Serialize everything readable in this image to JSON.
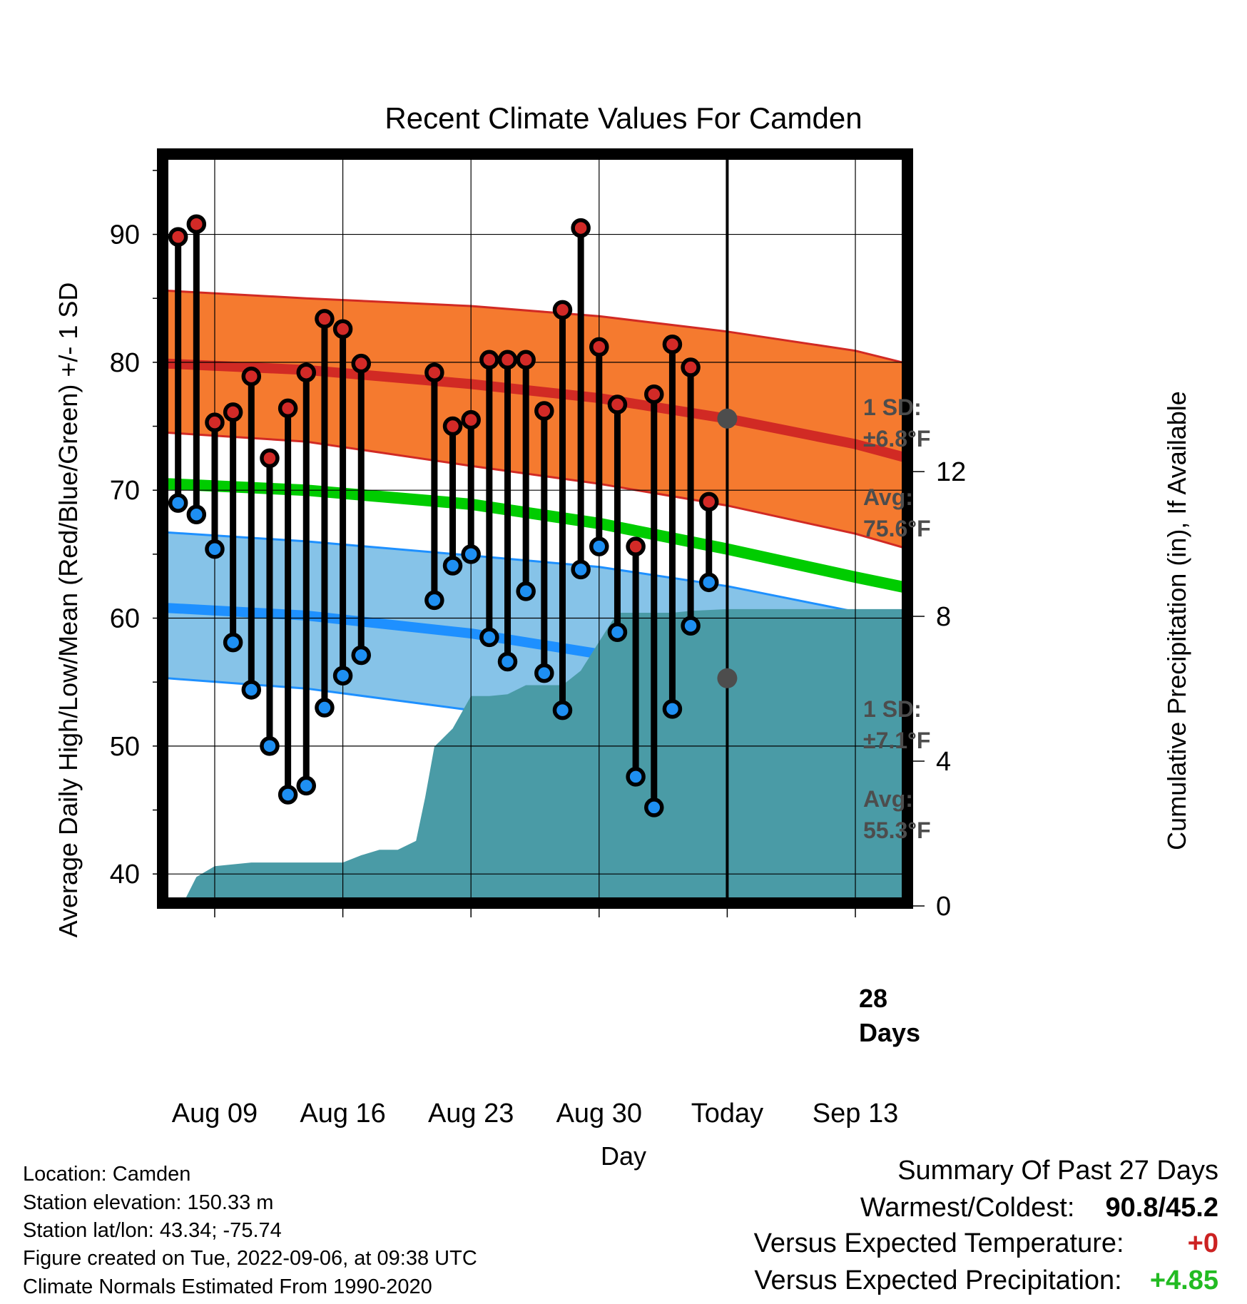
{
  "chart_data": {
    "type": "line",
    "title": "Recent Climate Values For Camden",
    "xlabel": "Day",
    "ylabel_left": "Average Daily High/Low/Mean (Red/Blue/Green) +/- 1 SD",
    "ylabel_right": "Cumulative Precipitation (in), If Available",
    "xlim": [
      -3,
      38
    ],
    "ylim_left": [
      37.5,
      96.5
    ],
    "ylim_right": [
      0,
      20.85
    ],
    "x_ticks": [
      {
        "x": 0,
        "label": "Aug 09"
      },
      {
        "x": 7,
        "label": "Aug 16"
      },
      {
        "x": 14,
        "label": "Aug 23"
      },
      {
        "x": 21,
        "label": "Aug 30"
      },
      {
        "x": 28,
        "label": "Today"
      },
      {
        "x": 35,
        "label": "Sep 13"
      }
    ],
    "y_ticks_left": [
      40,
      50,
      60,
      70,
      80,
      90
    ],
    "y_ticks_right": [
      0,
      4,
      8,
      12
    ],
    "today_x": 28,
    "daily": [
      {
        "x": -2,
        "high": 89.8,
        "low": 69.0
      },
      {
        "x": -1,
        "high": 90.8,
        "low": 68.1
      },
      {
        "x": 0,
        "high": 75.3,
        "low": 65.4
      },
      {
        "x": 1,
        "high": 76.1,
        "low": 58.1
      },
      {
        "x": 2,
        "high": 78.9,
        "low": 54.4
      },
      {
        "x": 3,
        "high": 72.5,
        "low": 50.0
      },
      {
        "x": 4,
        "high": 76.4,
        "low": 46.2
      },
      {
        "x": 5,
        "high": 79.2,
        "low": 46.9
      },
      {
        "x": 6,
        "high": 83.4,
        "low": 53.0
      },
      {
        "x": 7,
        "high": 82.6,
        "low": 55.5
      },
      {
        "x": 8,
        "high": 79.9,
        "low": 57.1
      },
      {
        "x": 12,
        "high": 79.2,
        "low": 61.4
      },
      {
        "x": 13,
        "high": 75.0,
        "low": 64.1
      },
      {
        "x": 14,
        "high": 75.5,
        "low": 65.0
      },
      {
        "x": 15,
        "high": 80.2,
        "low": 58.5
      },
      {
        "x": 16,
        "high": 80.2,
        "low": 56.6
      },
      {
        "x": 17,
        "high": 80.2,
        "low": 62.1
      },
      {
        "x": 18,
        "high": 76.2,
        "low": 55.7
      },
      {
        "x": 19,
        "high": 84.1,
        "low": 52.8
      },
      {
        "x": 20,
        "high": 90.5,
        "low": 63.8
      },
      {
        "x": 21,
        "high": 81.2,
        "low": 65.6
      },
      {
        "x": 22,
        "high": 76.7,
        "low": 58.9
      },
      {
        "x": 23,
        "high": 65.6,
        "low": 47.6
      },
      {
        "x": 24,
        "high": 77.5,
        "low": 45.2
      },
      {
        "x": 25,
        "high": 81.4,
        "low": 52.9
      },
      {
        "x": 26,
        "high": 79.6,
        "low": 59.4
      },
      {
        "x": 27,
        "high": 69.1,
        "low": 62.8
      }
    ],
    "normals": {
      "x": [
        -2.6,
        5,
        14,
        21,
        28,
        35,
        38.4
      ],
      "high_avg": [
        79.9,
        79.4,
        78.3,
        77.2,
        75.6,
        73.6,
        72.3
      ],
      "high_sd_upper": [
        85.6,
        85.0,
        84.4,
        83.6,
        82.4,
        80.9,
        79.7
      ],
      "high_sd_lower": [
        74.5,
        73.8,
        71.9,
        70.5,
        68.8,
        66.6,
        65.2
      ],
      "mean_avg": [
        70.5,
        70.0,
        68.9,
        67.4,
        65.4,
        63.2,
        62.2
      ],
      "low_avg": [
        60.8,
        60.2,
        58.8,
        57.2,
        55.3,
        52.8,
        51.6
      ],
      "low_sd_upper": [
        66.7,
        66.0,
        64.9,
        64.0,
        62.5,
        60.5,
        59.6
      ],
      "low_sd_lower": [
        55.3,
        54.5,
        52.8,
        50.7,
        48.2,
        45.5,
        44.3
      ]
    },
    "precip_cumulative": {
      "x": [
        -1.8,
        -1,
        0,
        2,
        7,
        8,
        9,
        10,
        11,
        11.5,
        12,
        13,
        14,
        15,
        16,
        17,
        18,
        19,
        20,
        21,
        22,
        23,
        24,
        25,
        26,
        28,
        38.4
      ],
      "y": [
        0,
        0.8,
        1.1,
        1.2,
        1.2,
        1.4,
        1.55,
        1.55,
        1.8,
        3.0,
        4.4,
        4.9,
        5.8,
        5.8,
        5.85,
        6.1,
        6.1,
        6.1,
        6.5,
        7.3,
        8.1,
        8.1,
        8.1,
        8.1,
        8.15,
        8.2,
        8.2
      ]
    },
    "annotations": {
      "high_sd_label": "1 SD:",
      "high_sd_value": "±6.8°F",
      "high_avg_label": "Avg:",
      "high_avg_value": "75.6°F",
      "low_sd_label": "1 SD:",
      "low_sd_value": "±7.1°F",
      "low_avg_label": "Avg:",
      "low_avg_value": "55.3°F",
      "days_number": "28",
      "days_label": "Days"
    },
    "grid": true
  },
  "colors": {
    "high_band": "#f57a2f",
    "high_avg_line": "#d12a24",
    "high_band_edge": "#d12a24",
    "mean_line": "#00cc00",
    "low_band": "#86c3e8",
    "low_avg_line": "#1e90ff",
    "low_band_edge": "#1e90ff",
    "precip_fill": "#4a9ba6",
    "high_dot": "#d22a27",
    "low_dot": "#1e8ff2",
    "today_dot": "#4d4d4d",
    "summary_temp": "#cc2222",
    "summary_precip": "#22bb22"
  },
  "footer": {
    "location": "Location: Camden",
    "elevation": "Station elevation: 150.33 m",
    "latlon": "Station lat/lon: 43.34; -75.74",
    "created": "Figure created on Tue, 2022-09-06, at 09:38 UTC",
    "normals": "Climate Normals Estimated From 1990-2020"
  },
  "summary": {
    "heading": "Summary Of Past 27 Days",
    "warmest_label": "Warmest/Coldest:",
    "warmest_value": "90.8/45.2",
    "temp_label": "Versus Expected Temperature:",
    "temp_value": "+0",
    "precip_label": "Versus Expected Precipitation:",
    "precip_value": "+4.85"
  }
}
